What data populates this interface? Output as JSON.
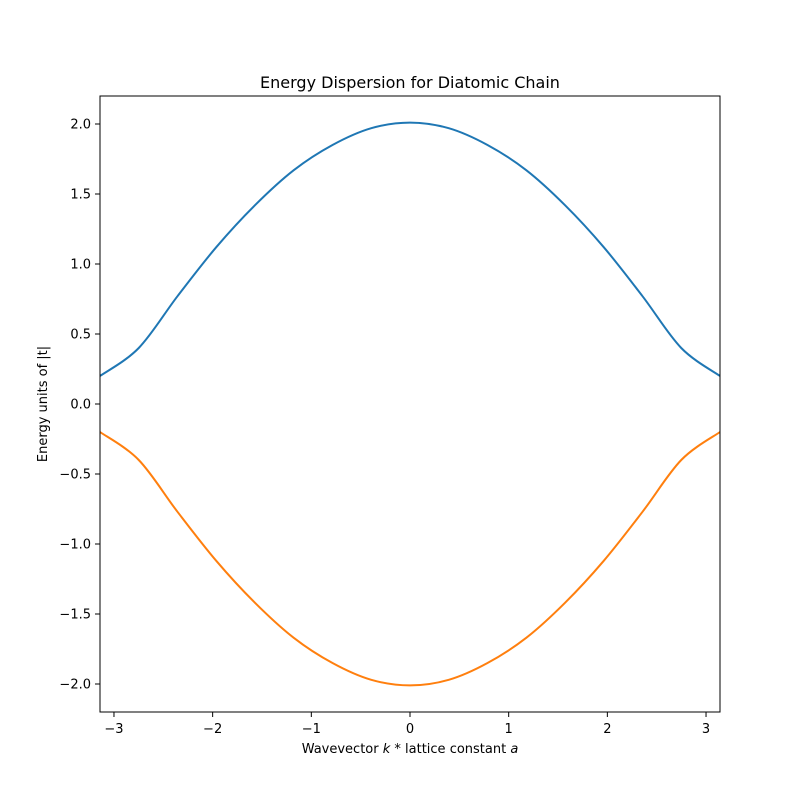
{
  "chart_data": {
    "type": "line",
    "title": "Energy Dispersion for Diatomic Chain",
    "xlabel": {
      "prefix": "Wavevector ",
      "k": "k",
      "middle": " * lattice constant ",
      "a": "a"
    },
    "ylabel": "Energy units of |t|",
    "xlim": [
      -3.14159,
      3.14159
    ],
    "ylim": [
      -2.2,
      2.2
    ],
    "xticks": [
      -3,
      -2,
      -1,
      0,
      1,
      2,
      3
    ],
    "xtick_labels": [
      "−3",
      "−2",
      "−1",
      "0",
      "1",
      "2",
      "3"
    ],
    "yticks": [
      -2.0,
      -1.5,
      -1.0,
      -0.5,
      0.0,
      0.5,
      1.0,
      1.5,
      2.0
    ],
    "ytick_labels": [
      "−2.0",
      "−1.5",
      "−1.0",
      "−0.5",
      "0.0",
      "0.5",
      "1.0",
      "1.5",
      "2.0"
    ],
    "grid": false,
    "x": [
      -3.1416,
      -2.7489,
      -2.3562,
      -1.9635,
      -1.5708,
      -1.1781,
      -0.7854,
      -0.3927,
      0,
      0.3927,
      0.7854,
      1.1781,
      1.5708,
      1.9635,
      2.3562,
      2.7489,
      3.1416
    ],
    "series": [
      {
        "color": "#1f77b4",
        "values": [
          0.2,
          0.4,
          0.77,
          1.12,
          1.42,
          1.67,
          1.85,
          1.97,
          2.01,
          1.97,
          1.85,
          1.67,
          1.42,
          1.12,
          0.77,
          0.4,
          0.2
        ]
      },
      {
        "color": "#ff7f0e",
        "values": [
          -0.2,
          -0.4,
          -0.77,
          -1.12,
          -1.42,
          -1.67,
          -1.85,
          -1.97,
          -2.01,
          -1.97,
          -1.85,
          -1.67,
          -1.42,
          -1.12,
          -0.77,
          -0.4,
          -0.2
        ]
      }
    ]
  }
}
